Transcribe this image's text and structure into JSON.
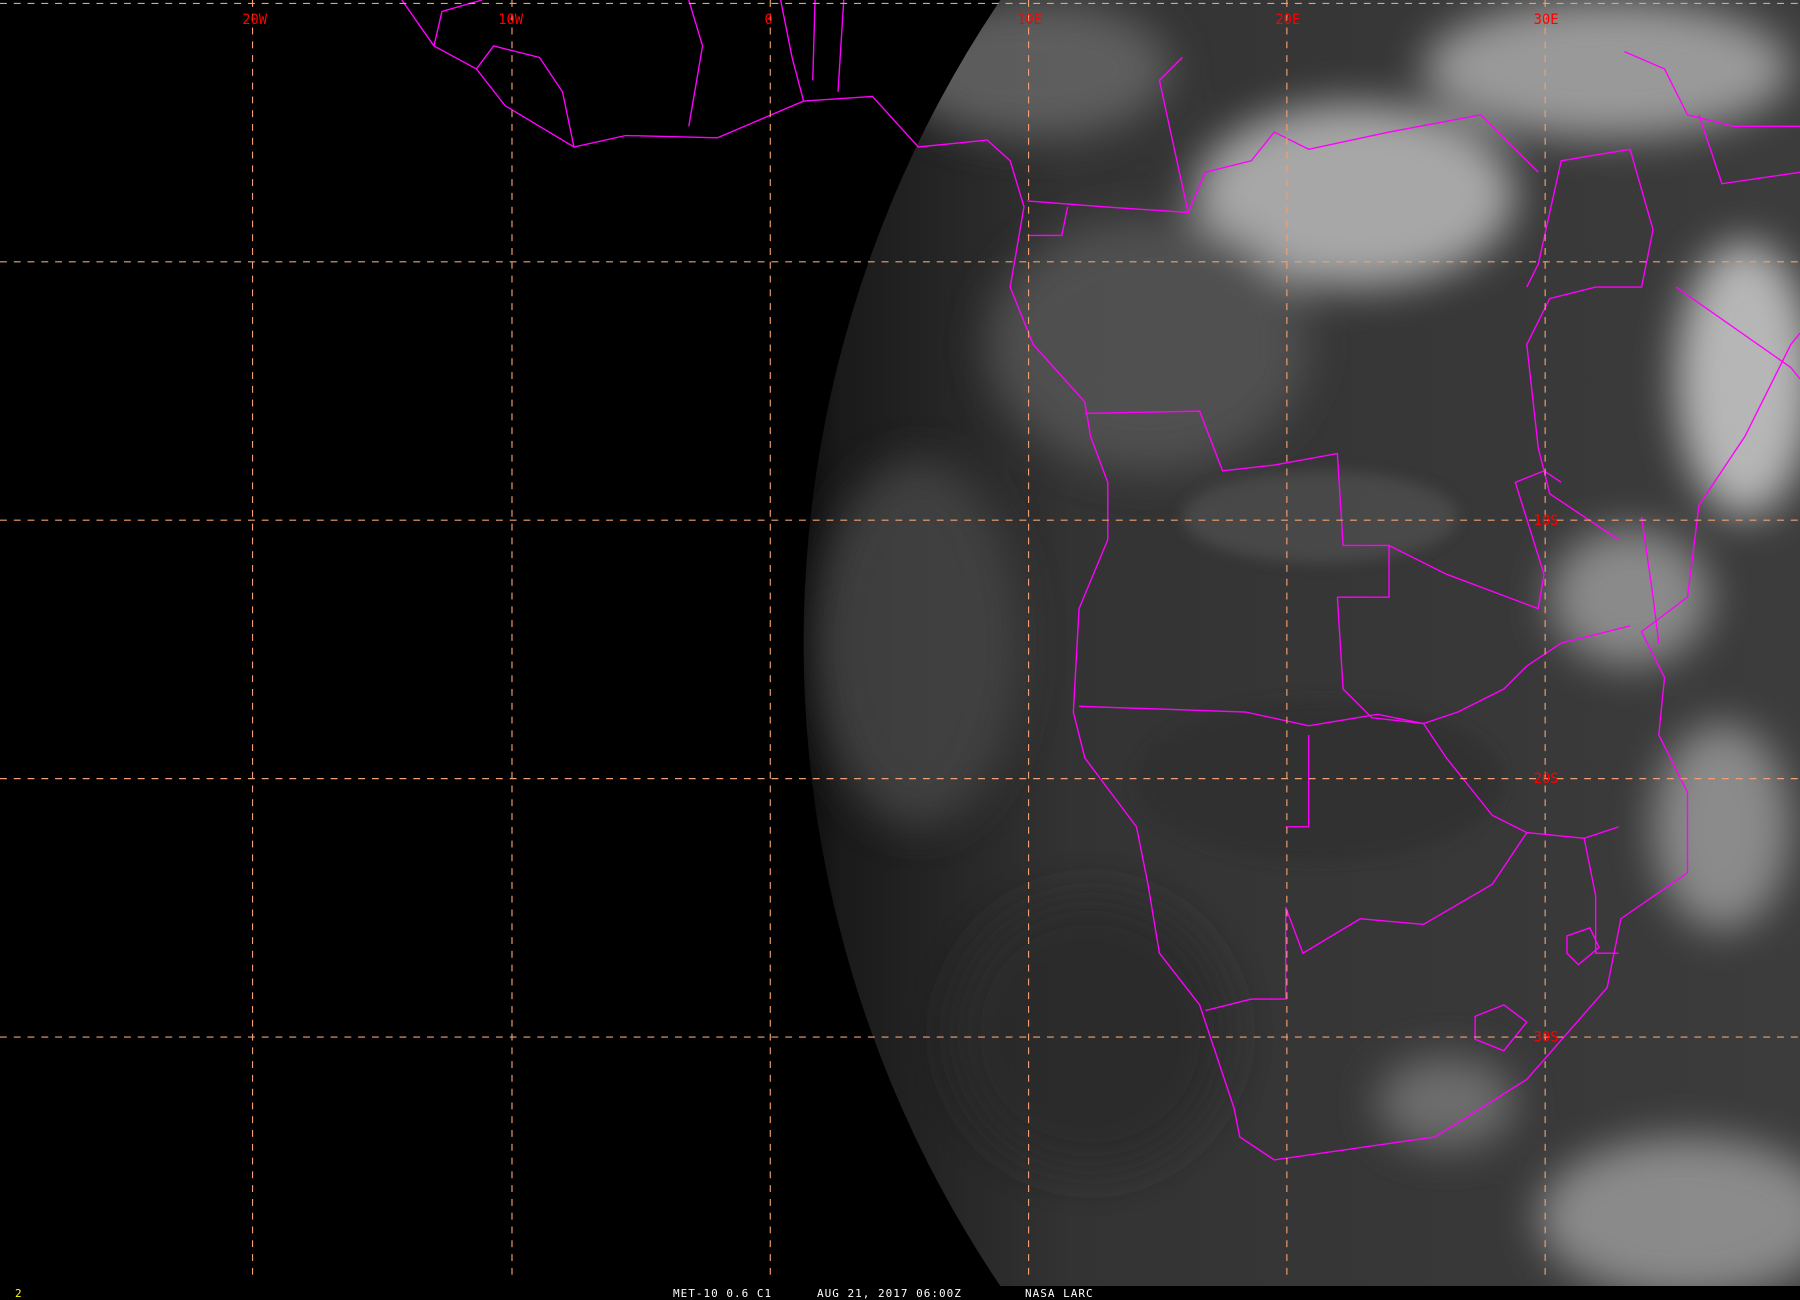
{
  "image": {
    "type": "satellite-visible-imagery",
    "region": "southern-africa",
    "colors": {
      "background": "#000000",
      "borders": "#ff00ff",
      "grid": "#f0a070",
      "grid_labels": "#ff0000",
      "frame_number": "#ffff00",
      "caption": "#ffffff"
    }
  },
  "grid": {
    "lon_labels": [
      "20W",
      "10W",
      "0",
      "10E",
      "20E",
      "30E"
    ],
    "lat_labels": [
      "10S",
      "20S",
      "30S"
    ]
  },
  "footer": {
    "frame_number": "2",
    "product": "MET-10 0.6 C1",
    "datetime": "AUG 21, 2017 06:00Z",
    "source": "NASA LARC"
  }
}
